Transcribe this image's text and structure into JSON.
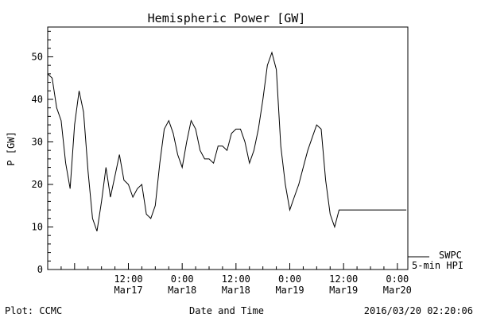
{
  "chart_data": {
    "type": "line",
    "title": "Hemispheric Power [GW]",
    "ylabel": "P [GW]",
    "xlabel": "Date and Time",
    "ylim": [
      0,
      57
    ],
    "xlim": [
      "2016-03-16 18:00",
      "2016-03-20 02:20"
    ],
    "yticks": [
      0,
      10,
      20,
      30,
      40,
      50
    ],
    "xticks": [
      {
        "time": "2016-03-17 12:00",
        "label1": "12:00",
        "label2": "Mar17"
      },
      {
        "time": "2016-03-18 00:00",
        "label1": "0:00",
        "label2": "Mar18"
      },
      {
        "time": "2016-03-18 12:00",
        "label1": "12:00",
        "label2": "Mar18"
      },
      {
        "time": "2016-03-19 00:00",
        "label1": "0:00",
        "label2": "Mar19"
      },
      {
        "time": "2016-03-19 12:00",
        "label1": "12:00",
        "label2": "Mar19"
      },
      {
        "time": "2016-03-20 00:00",
        "label1": "0:00",
        "label2": "Mar20"
      }
    ],
    "legend": {
      "source": "SWPC",
      "series": "5-min HPI",
      "placement": "bottom-right"
    },
    "series": [
      {
        "name": "5-min HPI",
        "color": "#000000",
        "x": [
          "2016-03-16 18:00",
          "2016-03-16 19:00",
          "2016-03-16 20:00",
          "2016-03-16 21:00",
          "2016-03-16 22:00",
          "2016-03-16 23:00",
          "2016-03-17 00:00",
          "2016-03-17 01:00",
          "2016-03-17 02:00",
          "2016-03-17 03:00",
          "2016-03-17 04:00",
          "2016-03-17 05:00",
          "2016-03-17 06:00",
          "2016-03-17 07:00",
          "2016-03-17 08:00",
          "2016-03-17 09:00",
          "2016-03-17 10:00",
          "2016-03-17 11:00",
          "2016-03-17 12:00",
          "2016-03-17 13:00",
          "2016-03-17 14:00",
          "2016-03-17 15:00",
          "2016-03-17 16:00",
          "2016-03-17 17:00",
          "2016-03-17 18:00",
          "2016-03-17 19:00",
          "2016-03-17 20:00",
          "2016-03-17 21:00",
          "2016-03-17 22:00",
          "2016-03-17 23:00",
          "2016-03-18 00:00",
          "2016-03-18 01:00",
          "2016-03-18 02:00",
          "2016-03-18 03:00",
          "2016-03-18 04:00",
          "2016-03-18 05:00",
          "2016-03-18 06:00",
          "2016-03-18 07:00",
          "2016-03-18 08:00",
          "2016-03-18 09:00",
          "2016-03-18 10:00",
          "2016-03-18 11:00",
          "2016-03-18 12:00",
          "2016-03-18 13:00",
          "2016-03-18 14:00",
          "2016-03-18 15:00",
          "2016-03-18 16:00",
          "2016-03-18 17:00",
          "2016-03-18 18:00",
          "2016-03-18 19:00",
          "2016-03-18 20:00",
          "2016-03-18 21:00",
          "2016-03-18 22:00",
          "2016-03-18 23:00",
          "2016-03-19 00:00",
          "2016-03-19 01:00",
          "2016-03-19 02:00",
          "2016-03-19 03:00",
          "2016-03-19 04:00",
          "2016-03-19 05:00",
          "2016-03-19 06:00",
          "2016-03-19 07:00",
          "2016-03-19 08:00",
          "2016-03-19 09:00",
          "2016-03-19 10:00",
          "2016-03-19 11:00",
          "2016-03-19 12:00",
          "2016-03-19 13:00",
          "2016-03-19 14:00",
          "2016-03-19 15:00",
          "2016-03-19 16:00",
          "2016-03-19 17:00",
          "2016-03-19 18:00",
          "2016-03-19 19:00",
          "2016-03-19 20:00",
          "2016-03-19 21:00",
          "2016-03-19 22:00",
          "2016-03-19 23:00",
          "2016-03-20 00:00",
          "2016-03-20 01:00",
          "2016-03-20 02:00"
        ],
        "y": [
          46,
          45,
          38,
          35,
          25,
          19,
          34,
          42,
          37,
          23,
          12,
          9,
          16,
          24,
          17,
          22,
          27,
          21,
          20,
          17,
          19,
          20,
          13,
          12,
          15,
          25,
          33,
          35,
          32,
          27,
          24,
          30,
          35,
          33,
          28,
          26,
          26,
          25,
          29,
          29,
          28,
          32,
          33,
          33,
          30,
          25,
          28,
          33,
          40,
          48,
          51,
          47,
          29,
          20,
          14,
          17,
          20,
          24,
          28,
          31,
          34,
          33,
          21,
          13,
          10,
          14,
          14,
          14,
          14,
          14,
          14,
          14,
          14,
          14,
          14,
          14,
          14,
          14,
          14,
          14,
          14
        ]
      }
    ]
  },
  "footer": {
    "plot_credit": "Plot: CCMC",
    "timestamp": "2016/03/20 02:20:06"
  }
}
